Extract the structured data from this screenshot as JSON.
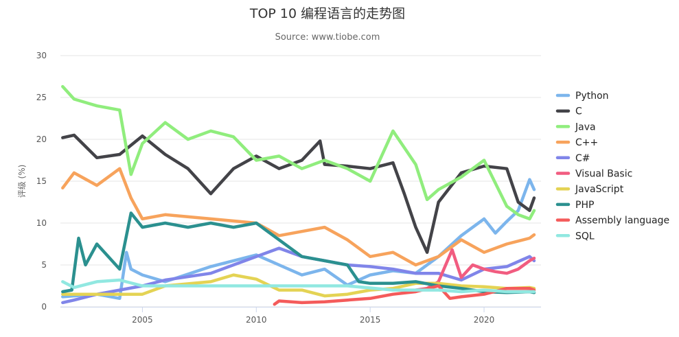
{
  "chart_data": {
    "type": "line",
    "title": "TOP 10 编程语言的走势图",
    "subtitle": "Source: www.tiobe.com",
    "xlabel": "",
    "ylabel": "评级 (%)",
    "xlim": [
      2001.4,
      2022.5
    ],
    "ylim": [
      0,
      30
    ],
    "x_ticks": [
      2005,
      2010,
      2015,
      2020
    ],
    "y_ticks": [
      0,
      5,
      10,
      15,
      20,
      25,
      30
    ],
    "grid": true,
    "legend_position": "right",
    "series": [
      {
        "name": "Python",
        "color": "#7cb5ec",
        "x": [
          2001.5,
          2003,
          2004,
          2004.3,
          2004.5,
          2005,
          2006,
          2008,
          2010,
          2011,
          2012,
          2013,
          2014,
          2015,
          2016,
          2017,
          2018,
          2019,
          2020,
          2020.5,
          2021,
          2021.5,
          2022,
          2022.2
        ],
        "y": [
          1.2,
          1.5,
          1.0,
          6.5,
          4.5,
          3.8,
          3.0,
          4.8,
          6.2,
          5.0,
          3.8,
          4.5,
          2.6,
          3.8,
          4.3,
          4.0,
          6.0,
          8.5,
          10.5,
          8.8,
          10.2,
          11.5,
          15.2,
          14.0
        ]
      },
      {
        "name": "C",
        "color": "#434348",
        "x": [
          2001.5,
          2002,
          2003,
          2004,
          2005,
          2006,
          2007,
          2008,
          2009,
          2010,
          2011,
          2012,
          2012.8,
          2013,
          2014,
          2015,
          2016,
          2016.5,
          2017,
          2017.5,
          2018,
          2019,
          2020,
          2021,
          2021.5,
          2022,
          2022.2
        ],
        "y": [
          20.2,
          20.5,
          17.8,
          18.2,
          20.4,
          18.2,
          16.5,
          13.5,
          16.5,
          18.0,
          16.5,
          17.5,
          19.8,
          17.0,
          16.8,
          16.5,
          17.2,
          13.5,
          9.5,
          6.5,
          12.5,
          16.0,
          16.8,
          16.5,
          12.5,
          11.5,
          13.0
        ]
      },
      {
        "name": "Java",
        "color": "#90ed7d",
        "x": [
          2001.5,
          2002,
          2003,
          2004,
          2004.5,
          2005,
          2006,
          2007,
          2008,
          2009,
          2010,
          2011,
          2012,
          2013,
          2014,
          2015,
          2016,
          2017,
          2017.5,
          2018,
          2019,
          2020,
          2021,
          2021.5,
          2022,
          2022.2
        ],
        "y": [
          26.3,
          24.8,
          24.0,
          23.5,
          15.8,
          19.5,
          22.0,
          20.0,
          21.0,
          20.3,
          17.5,
          18.0,
          16.5,
          17.5,
          16.5,
          15.0,
          21.0,
          17.0,
          12.8,
          14.0,
          15.5,
          17.5,
          12.0,
          11.0,
          10.5,
          11.5
        ]
      },
      {
        "name": "C++",
        "color": "#f7a35c",
        "x": [
          2001.5,
          2002,
          2003,
          2004,
          2004.5,
          2005,
          2006,
          2008,
          2010,
          2011,
          2012,
          2013,
          2014,
          2015,
          2016,
          2017,
          2018,
          2019,
          2020,
          2021,
          2022,
          2022.2
        ],
        "y": [
          14.2,
          16.0,
          14.5,
          16.5,
          13.0,
          10.5,
          11.0,
          10.5,
          10.0,
          8.5,
          9.0,
          9.5,
          8.0,
          6.0,
          6.5,
          5.0,
          6.0,
          8.0,
          6.5,
          7.5,
          8.2,
          8.6
        ]
      },
      {
        "name": "C#",
        "color": "#8085e9",
        "x": [
          2001.5,
          2002,
          2003,
          2004,
          2005,
          2006,
          2008,
          2010,
          2011,
          2012,
          2013,
          2014,
          2015,
          2016,
          2017,
          2018,
          2019,
          2020,
          2021,
          2022,
          2022.2
        ],
        "y": [
          0.5,
          0.8,
          1.5,
          2.0,
          2.5,
          3.2,
          4.0,
          6.0,
          7.0,
          6.0,
          5.5,
          5.0,
          4.8,
          4.5,
          4.0,
          4.0,
          3.2,
          4.5,
          4.8,
          6.0,
          5.5
        ]
      },
      {
        "name": "Visual Basic",
        "color": "#f15c80",
        "x": [
          2017,
          2017.5,
          2018,
          2018.6,
          2019,
          2019.5,
          2020,
          2020.5,
          2021,
          2021.5,
          2022,
          2022.2
        ],
        "y": [
          2.0,
          2.2,
          3.0,
          6.8,
          3.5,
          5.0,
          4.5,
          4.2,
          4.0,
          4.5,
          5.5,
          5.8
        ]
      },
      {
        "name": "JavaScript",
        "color": "#e4d354",
        "x": [
          2001.5,
          2003,
          2005,
          2006,
          2008,
          2009,
          2010,
          2011,
          2012,
          2013,
          2014,
          2015,
          2016,
          2017,
          2018,
          2019,
          2020,
          2021,
          2022,
          2022.2
        ],
        "y": [
          1.5,
          1.5,
          1.5,
          2.5,
          3.0,
          3.8,
          3.3,
          2.0,
          2.0,
          1.3,
          1.5,
          2.0,
          2.2,
          2.8,
          2.8,
          2.5,
          2.4,
          2.2,
          2.3,
          2.2
        ]
      },
      {
        "name": "PHP",
        "color": "#2b908f",
        "x": [
          2001.5,
          2001.9,
          2002.2,
          2002.5,
          2003,
          2004,
          2004.5,
          2005,
          2006,
          2007,
          2008,
          2009,
          2010,
          2011,
          2012,
          2013,
          2014,
          2014.5,
          2015,
          2016,
          2017,
          2018,
          2019,
          2020,
          2021,
          2022,
          2022.2
        ],
        "y": [
          1.8,
          2.0,
          8.2,
          5.0,
          7.5,
          4.5,
          11.2,
          9.5,
          10.0,
          9.5,
          10.0,
          9.5,
          10.0,
          8.0,
          6.0,
          5.5,
          5.0,
          3.0,
          2.8,
          2.8,
          3.0,
          2.5,
          2.2,
          1.8,
          1.7,
          1.8,
          1.7
        ]
      },
      {
        "name": "Assembly language",
        "color": "#f45b5b",
        "x": [
          2010.8,
          2011,
          2012,
          2013,
          2014,
          2015,
          2016,
          2017,
          2018,
          2018.5,
          2019,
          2020,
          2021,
          2022,
          2022.2
        ],
        "y": [
          0.3,
          0.7,
          0.5,
          0.6,
          0.8,
          1.0,
          1.5,
          1.8,
          2.5,
          1.0,
          1.2,
          1.5,
          2.2,
          2.2,
          2.0
        ]
      },
      {
        "name": "SQL",
        "color": "#91e8e1",
        "x": [
          2001.5,
          2002,
          2003,
          2004,
          2005,
          2008,
          2010,
          2013,
          2014,
          2016,
          2018,
          2019,
          2020,
          2021,
          2022,
          2022.2
        ],
        "y": [
          3.0,
          2.3,
          3.0,
          3.2,
          2.5,
          2.5,
          2.5,
          2.5,
          2.5,
          2.0,
          2.0,
          1.8,
          2.0,
          1.8,
          1.8,
          1.8
        ]
      }
    ]
  }
}
